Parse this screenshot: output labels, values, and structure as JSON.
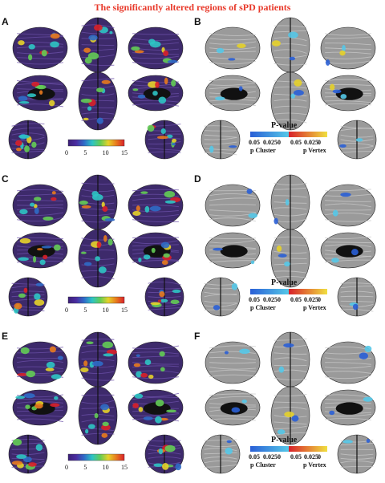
{
  "title": "The significantly altered regions of sPD patients",
  "panels": [
    {
      "letter": "A",
      "type": "thickness"
    },
    {
      "letter": "B",
      "type": "pvalue"
    },
    {
      "letter": "C",
      "type": "thickness"
    },
    {
      "letter": "D",
      "type": "pvalue"
    },
    {
      "letter": "E",
      "type": "thickness"
    },
    {
      "letter": "F",
      "type": "pvalue"
    }
  ],
  "thickness_colorbar": {
    "ticks": [
      "0",
      "5",
      "10",
      "15"
    ],
    "colors": [
      "#3b1f78",
      "#4a2da0",
      "#2f6cc8",
      "#2ec4c4",
      "#63cc55",
      "#e6d22a",
      "#e87a1e",
      "#d8202a"
    ]
  },
  "pvalue_legend": {
    "title": "P-value",
    "cluster_ticks": [
      "0.05",
      "0.025",
      "0"
    ],
    "vertex_ticks": [
      "0.05",
      "0.025",
      "0"
    ],
    "cluster_label": "p Cluster",
    "vertex_label": "p Vertex",
    "cluster_colors": [
      "#2a5fd6",
      "#55c8e8"
    ],
    "vertex_colors": [
      "#d8202a",
      "#f0e040"
    ]
  },
  "colors": {
    "title": "#e8392a",
    "brain_purple": "#3d2a6b",
    "brain_gray": "#9a9a9a",
    "medial_wall": "#111111"
  }
}
